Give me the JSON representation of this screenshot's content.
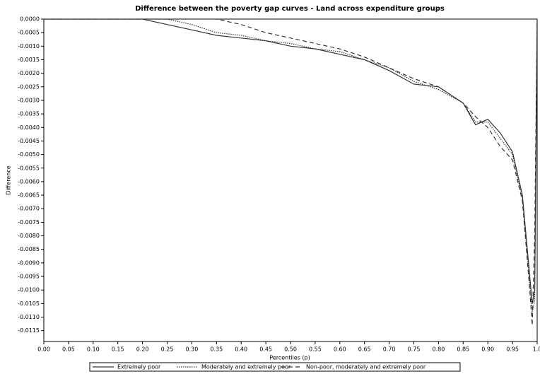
{
  "chart_data": {
    "type": "line",
    "title": "Difference between the poverty gap curves - Land across expenditure groups",
    "x_label": "Percentiles (p)",
    "y_label": "Difference",
    "x": [
      0,
      0.2,
      0.25,
      0.3,
      0.35,
      0.4,
      0.45,
      0.5,
      0.55,
      0.6,
      0.65,
      0.7,
      0.75,
      0.8,
      0.85,
      0.875,
      0.9,
      0.925,
      0.95,
      0.97,
      0.985,
      0.99,
      0.995,
      1.0
    ],
    "series": [
      {
        "name": "Extremely poor",
        "color": "#333333",
        "dash": "solid",
        "values": [
          0,
          0,
          -0.0002,
          -0.0004,
          -0.0006,
          -0.0007,
          -0.0008,
          -0.001,
          -0.0011,
          -0.0013,
          -0.0015,
          -0.0019,
          -0.0024,
          -0.0025,
          -0.0031,
          -0.0039,
          -0.0037,
          -0.0042,
          -0.0049,
          -0.0065,
          -0.0095,
          -0.0105,
          -0.01,
          0
        ]
      },
      {
        "name": "Moderately and extremely poor",
        "color": "#333333",
        "dash": "dotted",
        "values": [
          0,
          0,
          0,
          -0.0002,
          -0.0005,
          -0.0006,
          -0.0008,
          -0.0009,
          -0.0011,
          -0.0012,
          -0.0015,
          -0.0018,
          -0.0023,
          -0.0026,
          -0.0031,
          -0.0038,
          -0.0038,
          -0.0044,
          -0.005,
          -0.0066,
          -0.0098,
          -0.0108,
          -0.0104,
          0
        ]
      },
      {
        "name": "Non-poor, moderately and extremely poor",
        "color": "#333333",
        "dash": "dashed",
        "values": [
          0,
          0,
          0,
          0,
          0,
          -0.0002,
          -0.0005,
          -0.0007,
          -0.0009,
          -0.0011,
          -0.0014,
          -0.0018,
          -0.0022,
          -0.0025,
          -0.0031,
          -0.0036,
          -0.004,
          -0.0047,
          -0.0052,
          -0.0067,
          -0.01,
          -0.0113,
          -0.008,
          0
        ]
      }
    ],
    "xlim": [
      0,
      1
    ],
    "ylim": [
      -0.0119,
      0
    ],
    "xticks": [
      {
        "value": 0,
        "label": "0.00"
      },
      {
        "value": 0.05,
        "label": "0.05"
      },
      {
        "value": 0.1,
        "label": "0.10"
      },
      {
        "value": 0.15,
        "label": "0.15"
      },
      {
        "value": 0.2,
        "label": "0.20"
      },
      {
        "value": 0.25,
        "label": "0.25"
      },
      {
        "value": 0.3,
        "label": "0.30"
      },
      {
        "value": 0.35,
        "label": "0.35"
      },
      {
        "value": 0.4,
        "label": "0.40"
      },
      {
        "value": 0.45,
        "label": "0.45"
      },
      {
        "value": 0.5,
        "label": "0.50"
      },
      {
        "value": 0.55,
        "label": "0.55"
      },
      {
        "value": 0.6,
        "label": "0.60"
      },
      {
        "value": 0.65,
        "label": "0.65"
      },
      {
        "value": 0.7,
        "label": "0.70"
      },
      {
        "value": 0.75,
        "label": "0.75"
      },
      {
        "value": 0.8,
        "label": "0.80"
      },
      {
        "value": 0.85,
        "label": "0.85"
      },
      {
        "value": 0.9,
        "label": "0.90"
      },
      {
        "value": 0.95,
        "label": "0.95"
      },
      {
        "value": 1,
        "label": "1.0"
      }
    ],
    "yticks": [
      {
        "value": 0,
        "label": "0.0000"
      },
      {
        "value": -0.0005,
        "label": "-0.0005"
      },
      {
        "value": -0.001,
        "label": "-0.0010"
      },
      {
        "value": -0.0015,
        "label": "-0.0015"
      },
      {
        "value": -0.002,
        "label": "-0.0020"
      },
      {
        "value": -0.0025,
        "label": "-0.0025"
      },
      {
        "value": -0.003,
        "label": "-0.0030"
      },
      {
        "value": -0.0035,
        "label": "-0.0035"
      },
      {
        "value": -0.004,
        "label": "-0.0040"
      },
      {
        "value": -0.0045,
        "label": "-0.0045"
      },
      {
        "value": -0.005,
        "label": "-0.0050"
      },
      {
        "value": -0.0055,
        "label": "-0.0055"
      },
      {
        "value": -0.006,
        "label": "-0.0060"
      },
      {
        "value": -0.0065,
        "label": "-0.0065"
      },
      {
        "value": -0.007,
        "label": "-0.0070"
      },
      {
        "value": -0.0075,
        "label": "-0.0075"
      },
      {
        "value": -0.008,
        "label": "-0.0080"
      },
      {
        "value": -0.0085,
        "label": "-0.0085"
      },
      {
        "value": -0.009,
        "label": "-0.0090"
      },
      {
        "value": -0.0095,
        "label": "-0.0095"
      },
      {
        "value": -0.01,
        "label": "-0.0100"
      },
      {
        "value": -0.0105,
        "label": "-0.0105"
      },
      {
        "value": -0.011,
        "label": "-0.0110"
      },
      {
        "value": -0.0115,
        "label": "-0.0115"
      }
    ],
    "grid": false,
    "legend": "bottom"
  }
}
